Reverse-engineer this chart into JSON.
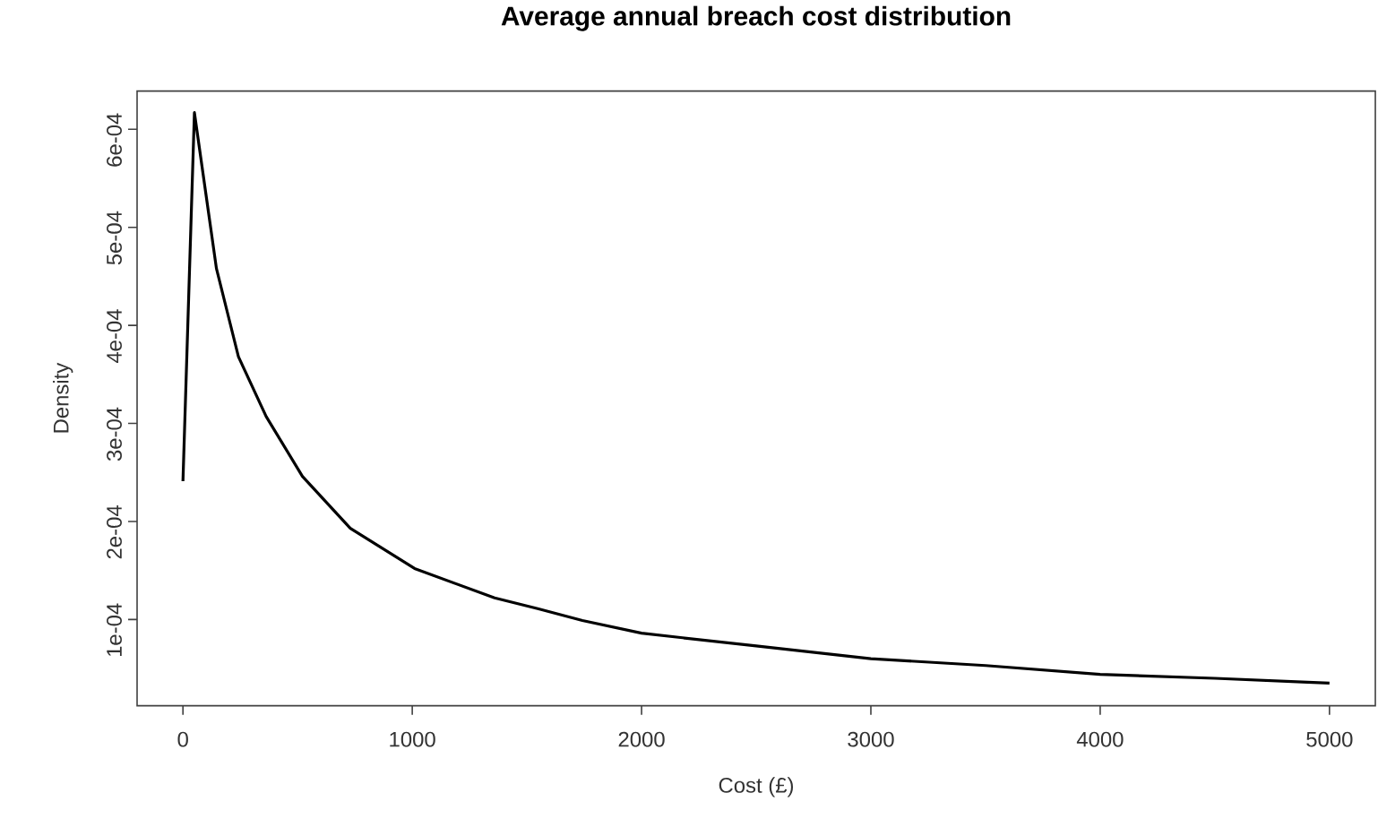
{
  "chart_data": {
    "type": "line",
    "title": "Average annual breach cost distribution",
    "xlabel": "Cost (£)",
    "ylabel": "Density",
    "x": [
      0,
      50,
      146,
      242,
      363,
      521,
      730,
      1010,
      1359,
      1547,
      1742,
      2000,
      2500,
      3000,
      3500,
      4000,
      4500,
      5000
    ],
    "values": [
      0.000241,
      0.000617,
      0.000458,
      0.000368,
      0.000307,
      0.000246,
      0.000193,
      0.000152,
      0.000122,
      0.000111,
      9.9e-05,
      8.6e-05,
      7.3e-05,
      6e-05,
      5.3e-05,
      4.4e-05,
      4e-05,
      3.5e-05
    ],
    "color": "#000000",
    "xlim": [
      -200,
      5200
    ],
    "ylim": [
      1.2e-05,
      0.000639
    ],
    "xticks": [
      0,
      1000,
      2000,
      3000,
      4000,
      5000
    ],
    "yticks": [
      {
        "value": 0.0001,
        "label": "1e-04"
      },
      {
        "value": 0.0002,
        "label": "2e-04"
      },
      {
        "value": 0.0003,
        "label": "3e-04"
      },
      {
        "value": 0.0004,
        "label": "4e-04"
      },
      {
        "value": 0.0005,
        "label": "5e-04"
      },
      {
        "value": 0.0006,
        "label": "6e-04"
      }
    ]
  }
}
